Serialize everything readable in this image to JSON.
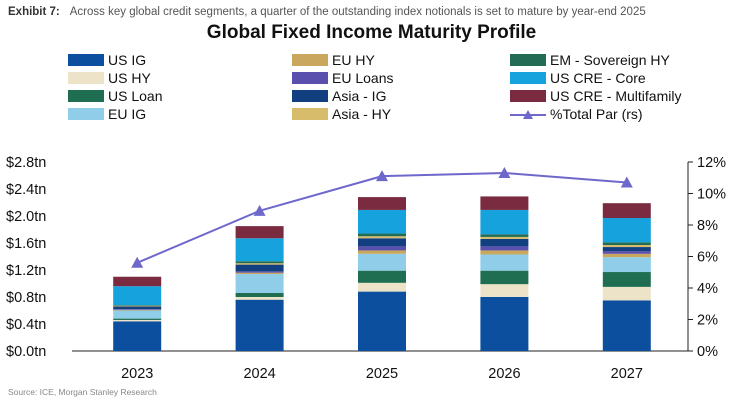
{
  "header": {
    "exhibit_label": "Exhibit 7:",
    "caption": "Across key global credit segments, a quarter of the outstanding index notionals is set to mature by year-end 2025"
  },
  "source": "Source: ICE, Morgan Stanley Research",
  "colors": {
    "US IG": "#0b4f9e",
    "US HY": "#ede3c8",
    "US Loan": "#1f6e52",
    "EU IG": "#8fcde9",
    "EU HY": "#c9a75d",
    "EU Loans": "#5b4fad",
    "Asia - IG": "#123f80",
    "Asia - HY": "#d7bd6b",
    "EM - Sovereign HY": "#236b55",
    "US CRE - Core": "#16a2dc",
    "US CRE - Multifamily": "#7a2b3f",
    "%Total Par (rs)": "#6f68cc"
  },
  "chart_data": {
    "type": "bar",
    "stacked": true,
    "title": "Global Fixed Income Maturity Profile",
    "categories": [
      "2023",
      "2024",
      "2025",
      "2026",
      "2027"
    ],
    "ylim": [
      0,
      2.8
    ],
    "y_ticks": [
      "$0.0tn",
      "$0.4tn",
      "$0.8tn",
      "$1.2tn",
      "$1.6tn",
      "$2.0tn",
      "$2.4tn",
      "$2.8tn"
    ],
    "y2lim": [
      0,
      12
    ],
    "y2_ticks": [
      "0%",
      "2%",
      "4%",
      "6%",
      "8%",
      "10%",
      "12%"
    ],
    "series": [
      {
        "name": "US IG",
        "values": [
          0.44,
          0.76,
          0.88,
          0.8,
          0.75
        ]
      },
      {
        "name": "US HY",
        "values": [
          0.02,
          0.04,
          0.13,
          0.19,
          0.2
        ]
      },
      {
        "name": "US Loan",
        "values": [
          0.02,
          0.06,
          0.18,
          0.2,
          0.22
        ]
      },
      {
        "name": "EU IG",
        "values": [
          0.12,
          0.28,
          0.25,
          0.24,
          0.22
        ]
      },
      {
        "name": "EU HY",
        "values": [
          0.01,
          0.02,
          0.05,
          0.06,
          0.05
        ]
      },
      {
        "name": "EU Loans",
        "values": [
          0.01,
          0.02,
          0.06,
          0.06,
          0.04
        ]
      },
      {
        "name": "Asia - IG",
        "values": [
          0.04,
          0.1,
          0.12,
          0.11,
          0.06
        ]
      },
      {
        "name": "Asia - HY",
        "values": [
          0.01,
          0.02,
          0.03,
          0.03,
          0.03
        ]
      },
      {
        "name": "EM - Sovereign HY",
        "values": [
          0.01,
          0.03,
          0.04,
          0.04,
          0.04
        ]
      },
      {
        "name": "US CRE - Core",
        "values": [
          0.28,
          0.34,
          0.35,
          0.36,
          0.36
        ]
      },
      {
        "name": "US CRE - Multifamily",
        "values": [
          0.14,
          0.18,
          0.19,
          0.2,
          0.22
        ]
      }
    ],
    "line": {
      "name": "%Total Par (rs)",
      "values": [
        5.6,
        8.9,
        11.1,
        11.3,
        10.7
      ]
    }
  }
}
